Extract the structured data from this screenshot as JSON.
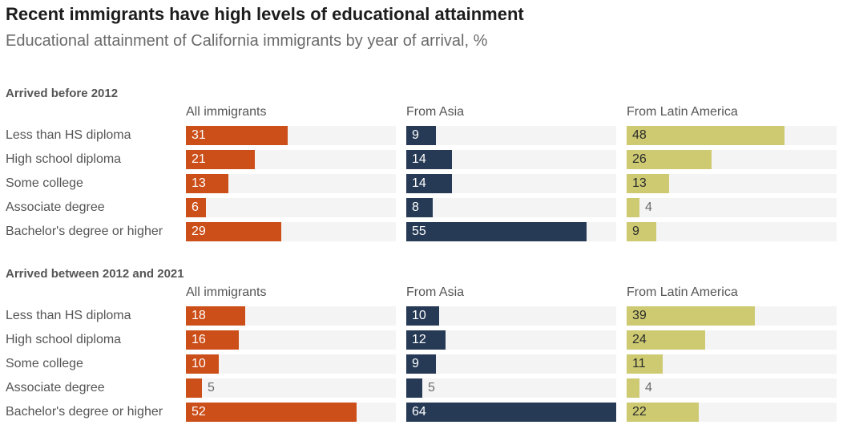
{
  "header": {
    "title": "Recent immigrants have high levels of educational attainment",
    "subtitle": "Educational attainment of California immigrants by year of arrival, %"
  },
  "colors": {
    "All immigrants": "#cc4e18",
    "From Asia": "#263a55",
    "From Latin America": "#cdca72",
    "track": "#f4f4f4"
  },
  "chart_data": {
    "type": "bar",
    "orientation": "horizontal",
    "categories": [
      "Less than HS diploma",
      "High school diploma",
      "Some college",
      "Associate degree",
      "Bachelor's degree or higher"
    ],
    "panels": [
      "All immigrants",
      "From Asia",
      "From Latin America"
    ],
    "xlim": [
      0,
      64
    ],
    "sections": [
      {
        "title": "Arrived before 2012",
        "series": [
          {
            "name": "All immigrants",
            "values": [
              31,
              21,
              13,
              6,
              29
            ]
          },
          {
            "name": "From Asia",
            "values": [
              9,
              14,
              14,
              8,
              55
            ]
          },
          {
            "name": "From Latin America",
            "values": [
              48,
              26,
              13,
              4,
              9
            ]
          }
        ]
      },
      {
        "title": "Arrived between 2012 and 2021",
        "series": [
          {
            "name": "All immigrants",
            "values": [
              18,
              16,
              10,
              5,
              52
            ]
          },
          {
            "name": "From Asia",
            "values": [
              10,
              12,
              9,
              5,
              64
            ]
          },
          {
            "name": "From Latin America",
            "values": [
              39,
              24,
              11,
              4,
              22
            ]
          }
        ]
      }
    ]
  }
}
